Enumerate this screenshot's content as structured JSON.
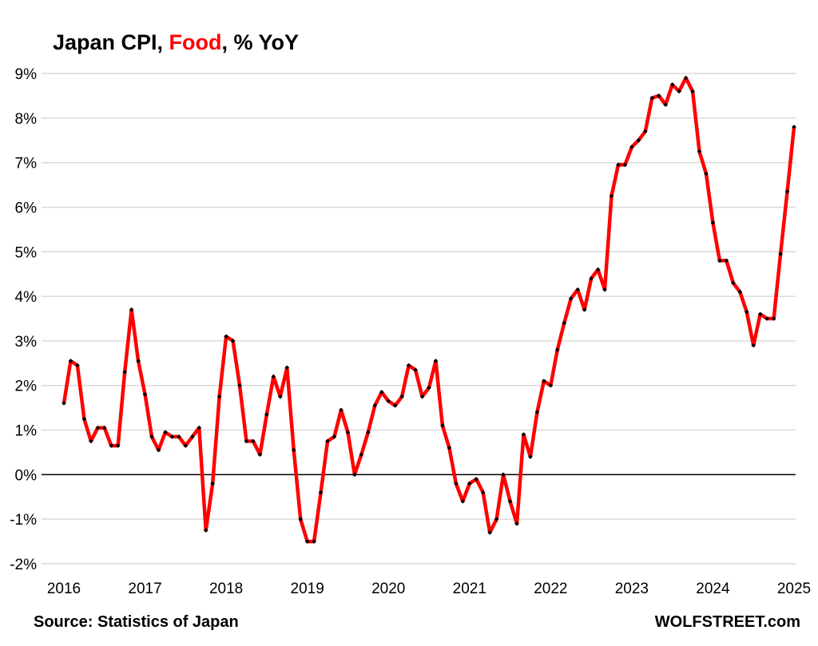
{
  "title": {
    "prefix": "Japan CPI, ",
    "highlight": "Food",
    "suffix": ", % YoY"
  },
  "source": "Source: Statistics of Japan",
  "brand": "WOLFSTREET.com",
  "colors": {
    "line": "#ff0000",
    "marker": "#000000",
    "grid": "#d9d9d9",
    "highlight": "#ff0000"
  },
  "chart_data": {
    "type": "line",
    "title": "Japan CPI, Food, % YoY",
    "ylim": [
      -2,
      9
    ],
    "yticks": [
      "-2%",
      "-1%",
      "0%",
      "1%",
      "2%",
      "3%",
      "4%",
      "5%",
      "6%",
      "7%",
      "8%",
      "9%"
    ],
    "xticks": [
      "2016",
      "2017",
      "2018",
      "2019",
      "2020",
      "2021",
      "2022",
      "2023",
      "2024",
      "2025"
    ],
    "grid": true,
    "x_start": "2016-01",
    "x_end": "2025-01",
    "frequency": "monthly",
    "values": [
      1.6,
      2.55,
      2.45,
      1.25,
      0.75,
      1.05,
      1.05,
      0.65,
      0.65,
      2.3,
      3.7,
      2.55,
      1.8,
      0.85,
      0.55,
      0.95,
      0.85,
      0.85,
      0.65,
      0.85,
      1.05,
      -1.25,
      -0.2,
      1.75,
      3.1,
      3.0,
      2.0,
      0.75,
      0.75,
      0.45,
      1.35,
      2.2,
      1.75,
      2.4,
      0.55,
      -1.0,
      -1.5,
      -1.5,
      -0.4,
      0.75,
      0.85,
      1.45,
      0.95,
      0.0,
      0.45,
      0.95,
      1.55,
      1.85,
      1.65,
      1.55,
      1.75,
      2.45,
      2.35,
      1.75,
      1.95,
      2.55,
      1.1,
      0.6,
      -0.2,
      -0.6,
      -0.2,
      -0.1,
      -0.4,
      -1.3,
      -1.0,
      0.0,
      -0.6,
      -1.1,
      0.9,
      0.4,
      1.4,
      2.1,
      2.0,
      2.8,
      3.4,
      3.95,
      4.15,
      3.7,
      4.4,
      4.6,
      4.15,
      6.25,
      6.95,
      6.95,
      7.35,
      7.5,
      7.7,
      8.45,
      8.5,
      8.3,
      8.75,
      8.6,
      8.9,
      8.6,
      7.25,
      6.75,
      5.65,
      4.8,
      4.8,
      4.3,
      4.1,
      3.65,
      2.9,
      3.6,
      3.5,
      3.5,
      4.95,
      6.35,
      7.8
    ]
  }
}
